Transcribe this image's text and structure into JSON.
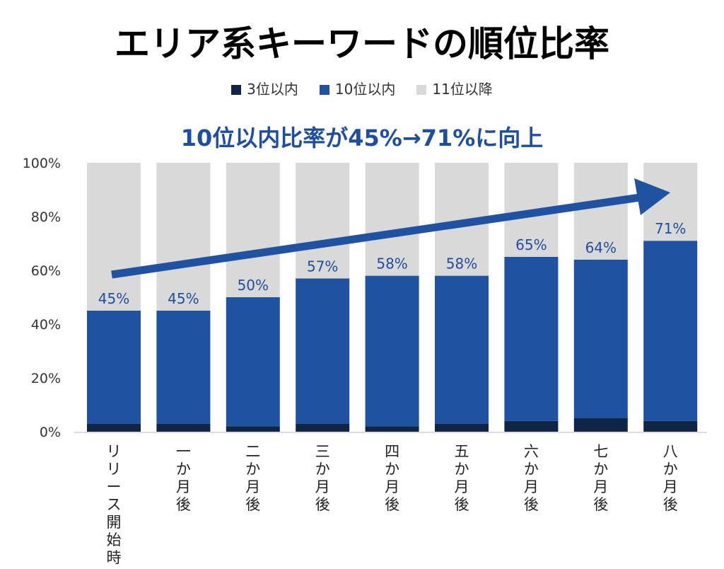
{
  "chart_data": {
    "type": "bar",
    "stacked": true,
    "title": "エリア系キーワードの順位比率",
    "subtitle": "10位以内比率が45%→71%に向上",
    "categories": [
      "リリース開始時",
      "一か月後",
      "二か月後",
      "三か月後",
      "四か月後",
      "五か月後",
      "六か月後",
      "七か月後",
      "八か月後"
    ],
    "series": [
      {
        "name": "3位以内",
        "color": "#0e2546",
        "values": [
          3,
          3,
          2,
          3,
          2,
          3,
          4,
          5,
          4
        ]
      },
      {
        "name": "10位以内",
        "color": "#1f52a0",
        "values": [
          42,
          42,
          48,
          54,
          56,
          55,
          61,
          59,
          67
        ]
      },
      {
        "name": "11位以降",
        "color": "#d9d9d9",
        "values": [
          55,
          55,
          50,
          43,
          42,
          42,
          35,
          36,
          29
        ]
      }
    ],
    "data_labels": [
      "45%",
      "45%",
      "50%",
      "57%",
      "58%",
      "58%",
      "65%",
      "64%",
      "71%"
    ],
    "top10_totals": [
      45,
      45,
      50,
      57,
      58,
      58,
      65,
      64,
      71
    ],
    "yticks": [
      "0%",
      "20%",
      "40%",
      "60%",
      "80%",
      "100%"
    ],
    "ylim": [
      0,
      100
    ],
    "legend_position": "top",
    "annotation": "trend-arrow"
  }
}
